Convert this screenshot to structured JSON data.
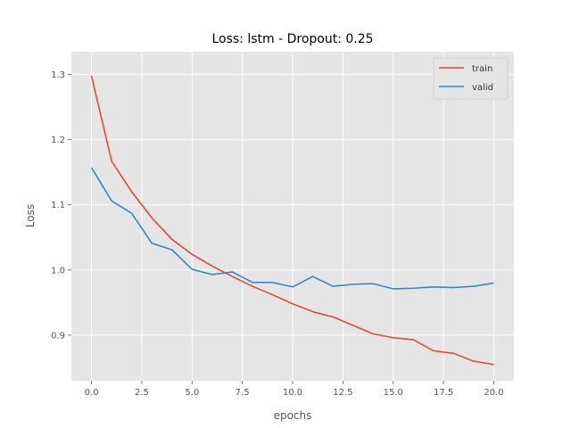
{
  "chart_data": {
    "type": "line",
    "title": "Loss: lstm - Dropout: 0.25",
    "xlabel": "epochs",
    "ylabel": "Loss",
    "xlim": [
      -1,
      21
    ],
    "ylim": [
      0.83,
      1.335
    ],
    "xticks": [
      0,
      2.5,
      5,
      7.5,
      10,
      12.5,
      15,
      17.5,
      20
    ],
    "xtick_labels": [
      "0.0",
      "2.5",
      "5.0",
      "7.5",
      "10.0",
      "12.5",
      "15.0",
      "17.5",
      "20.0"
    ],
    "yticks": [
      0.9,
      1.0,
      1.1,
      1.2,
      1.3
    ],
    "ytick_labels": [
      "0.9",
      "1.0",
      "1.1",
      "1.2",
      "1.3"
    ],
    "grid": true,
    "legend": "top-right",
    "x": [
      0,
      1,
      2,
      3,
      4,
      5,
      6,
      7,
      8,
      9,
      10,
      11,
      12,
      13,
      14,
      15,
      16,
      17,
      18,
      19,
      20
    ],
    "series": [
      {
        "name": "train",
        "color": "#E24A33",
        "values": [
          1.298,
          1.167,
          1.12,
          1.08,
          1.047,
          1.024,
          1.006,
          0.99,
          0.975,
          0.962,
          0.948,
          0.936,
          0.928,
          0.915,
          0.902,
          0.896,
          0.893,
          0.876,
          0.872,
          0.86,
          0.855
        ]
      },
      {
        "name": "valid",
        "color": "#348ABD",
        "values": [
          1.157,
          1.106,
          1.087,
          1.041,
          1.031,
          1.001,
          0.993,
          0.997,
          0.981,
          0.981,
          0.974,
          0.99,
          0.975,
          0.978,
          0.979,
          0.971,
          0.972,
          0.974,
          0.973,
          0.975,
          0.98
        ]
      }
    ]
  }
}
